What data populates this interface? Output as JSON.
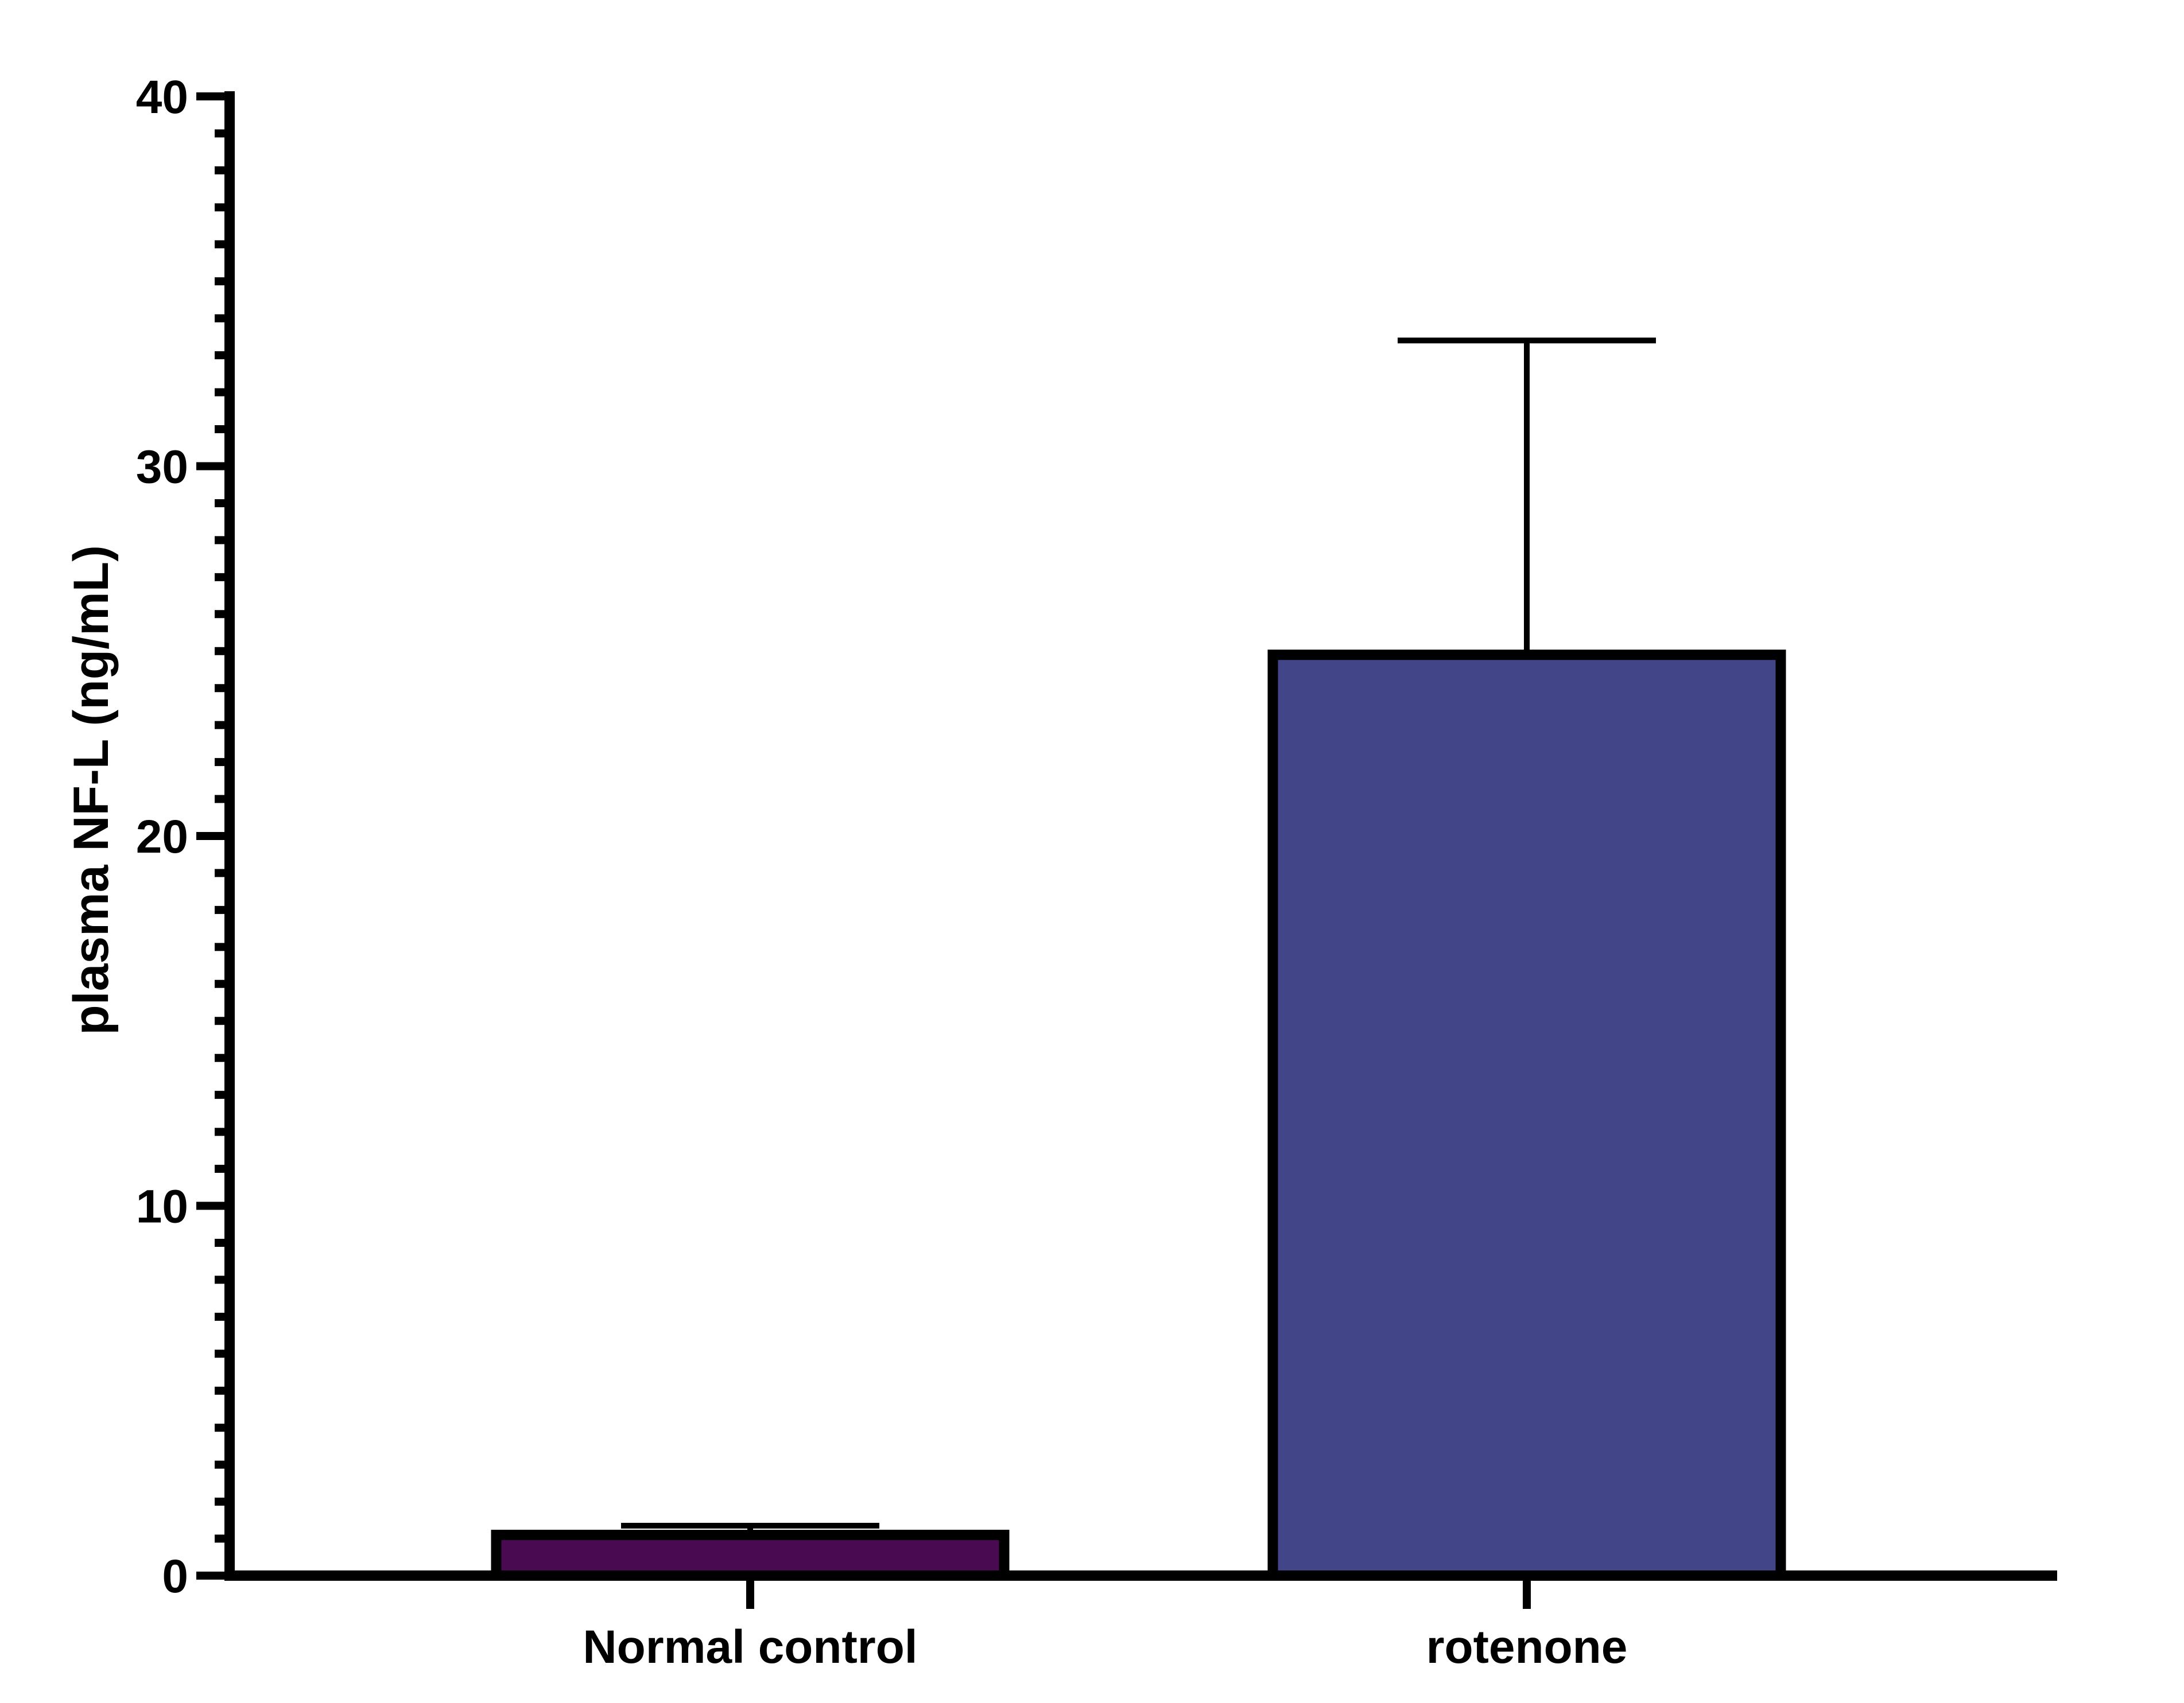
{
  "chart_data": {
    "type": "bar",
    "categories": [
      "Normal control",
      "rotenone"
    ],
    "values": [
      1.1,
      24.9
    ],
    "error_upper": [
      1.35,
      33.4
    ],
    "colors": [
      "#4a0a52",
      "#424587"
    ],
    "ylabel": "plasma NF-L (ng/mL)",
    "xlabel": "",
    "title": "",
    "ylim": [
      0,
      40
    ],
    "y_major_ticks": [
      0,
      10,
      20,
      30,
      40
    ],
    "y_minor_step": 1,
    "grid": false,
    "legend": "none"
  }
}
